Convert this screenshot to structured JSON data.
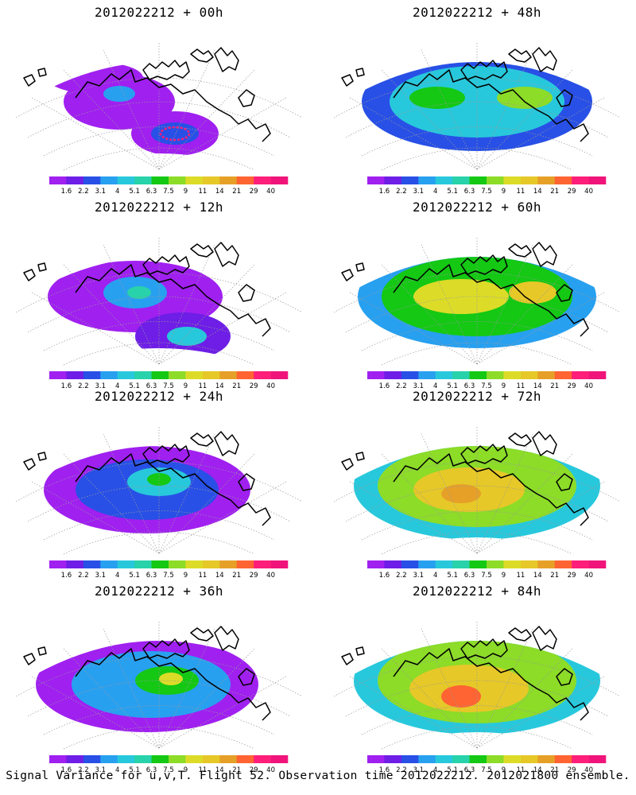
{
  "figure": {
    "caption": "Signal Variance for u,v,T. Flight 52. Observation time 2012022212. 2012021800 ensemble."
  },
  "colorbar": {
    "ticks": [
      "1.6",
      "2.2",
      "3.1",
      "4",
      "5.1",
      "6.3",
      "7.5",
      "9",
      "11",
      "14",
      "21",
      "29",
      "40"
    ],
    "colors": [
      "#a020f0",
      "#6e1ee6",
      "#2850e6",
      "#28a0f0",
      "#28c8dc",
      "#28d2aa",
      "#14c814",
      "#8cdc28",
      "#dcdc28",
      "#e6c828",
      "#e6a028",
      "#ff6432",
      "#ff1e7a",
      "#f0147a"
    ]
  },
  "panels": [
    {
      "title": "2012022212 + 00h",
      "intensity": 0
    },
    {
      "title": "2012022212 + 12h",
      "intensity": 1
    },
    {
      "title": "2012022212 + 24h",
      "intensity": 2
    },
    {
      "title": "2012022212 + 36h",
      "intensity": 3
    },
    {
      "title": "2012022212 + 48h",
      "intensity": 3
    },
    {
      "title": "2012022212 + 60h",
      "intensity": 4
    },
    {
      "title": "2012022212 + 72h",
      "intensity": 5
    },
    {
      "title": "2012022212 + 84h",
      "intensity": 5
    }
  ]
}
